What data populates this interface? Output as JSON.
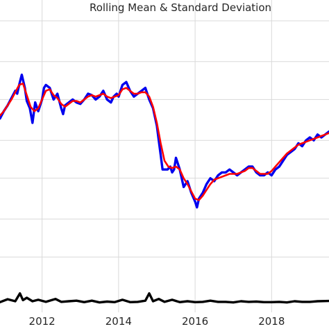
{
  "chart_data": {
    "type": "line",
    "title": "Rolling Mean & Standard Deviation",
    "xlabel": "",
    "ylabel": "",
    "xlim": [
      2010.9,
      2019.5
    ],
    "ylim": [
      0,
      100
    ],
    "x_ticks": [
      2012,
      2014,
      2016,
      2018
    ],
    "x_tick_labels": [
      "2012",
      "2014",
      "2016",
      "2018"
    ],
    "y_gridlines": [
      19,
      32,
      46,
      59,
      73,
      86,
      100
    ],
    "grid": true,
    "legend": "none",
    "series": [
      {
        "color": "#0000ee",
        "x": [
          2010.9,
          2011.0,
          2011.1,
          2011.2,
          2011.3,
          2011.35,
          2011.4,
          2011.47,
          2011.55,
          2011.6,
          2011.68,
          2011.75,
          2011.82,
          2011.9,
          2012.0,
          2012.05,
          2012.1,
          2012.2,
          2012.3,
          2012.4,
          2012.5,
          2012.55,
          2012.6,
          2012.7,
          2012.8,
          2012.9,
          2013.0,
          2013.1,
          2013.2,
          2013.3,
          2013.4,
          2013.5,
          2013.6,
          2013.7,
          2013.8,
          2013.87,
          2013.95,
          2014.0,
          2014.1,
          2014.2,
          2014.3,
          2014.4,
          2014.5,
          2014.6,
          2014.7,
          2014.8,
          2014.9,
          2015.0,
          2015.05,
          2015.1,
          2015.15,
          2015.2,
          2015.28,
          2015.35,
          2015.4,
          2015.45,
          2015.5,
          2015.6,
          2015.7,
          2015.8,
          2015.9,
          2016.0,
          2016.05,
          2016.1,
          2016.2,
          2016.3,
          2016.4,
          2016.5,
          2016.6,
          2016.7,
          2016.8,
          2016.9,
          2017.0,
          2017.1,
          2017.2,
          2017.3,
          2017.4,
          2017.5,
          2017.6,
          2017.7,
          2017.8,
          2017.9,
          2018.0,
          2018.1,
          2018.2,
          2018.3,
          2018.4,
          2018.5,
          2018.6,
          2018.7,
          2018.8,
          2018.9,
          2019.0,
          2019.1,
          2019.2,
          2019.3,
          2019.4,
          2019.5
        ],
        "y": [
          66.5,
          69,
          71,
          73.5,
          76,
          75,
          78,
          81.5,
          77,
          72.5,
          70,
          65,
          72,
          69,
          73,
          77,
          78,
          77,
          73,
          75,
          70,
          68,
          71,
          72,
          73,
          72,
          71.5,
          73,
          75,
          74.5,
          73,
          74,
          76,
          73,
          72,
          74,
          75,
          74,
          78,
          79,
          76,
          74,
          75,
          76,
          77,
          73,
          70,
          64,
          59,
          54,
          49,
          49,
          49,
          50,
          48,
          49,
          53,
          49,
          43,
          45,
          41,
          38,
          36,
          39,
          41,
          44,
          46,
          45,
          47,
          48,
          48,
          49,
          48,
          47,
          48,
          49,
          50,
          50,
          48,
          47,
          47,
          48,
          47,
          49,
          50,
          52,
          54,
          55,
          56,
          58,
          57,
          59,
          60,
          59,
          61,
          60,
          61,
          62
        ]
      },
      {
        "color": "#ff0000",
        "x": [
          2010.9,
          2011.0,
          2011.1,
          2011.2,
          2011.3,
          2011.4,
          2011.5,
          2011.6,
          2011.7,
          2011.8,
          2011.9,
          2012.0,
          2012.1,
          2012.2,
          2012.3,
          2012.4,
          2012.5,
          2012.6,
          2012.7,
          2012.8,
          2012.9,
          2013.0,
          2013.1,
          2013.2,
          2013.3,
          2013.4,
          2013.5,
          2013.6,
          2013.7,
          2013.8,
          2013.9,
          2014.0,
          2014.1,
          2014.2,
          2014.3,
          2014.4,
          2014.5,
          2014.6,
          2014.7,
          2014.8,
          2014.9,
          2015.0,
          2015.1,
          2015.2,
          2015.3,
          2015.4,
          2015.5,
          2015.6,
          2015.7,
          2015.8,
          2015.9,
          2016.0,
          2016.1,
          2016.2,
          2016.3,
          2016.4,
          2016.5,
          2016.6,
          2016.7,
          2016.8,
          2016.9,
          2017.0,
          2017.1,
          2017.2,
          2017.3,
          2017.4,
          2017.5,
          2017.6,
          2017.7,
          2017.8,
          2017.9,
          2018.0,
          2018.1,
          2018.2,
          2018.3,
          2018.4,
          2018.5,
          2018.6,
          2018.7,
          2018.8,
          2018.9,
          2019.0,
          2019.1,
          2019.2,
          2019.3,
          2019.4,
          2019.5
        ],
        "y": [
          67.5,
          69,
          71,
          73,
          75.5,
          78,
          78.5,
          74.5,
          70.5,
          69,
          70,
          73,
          76,
          76.5,
          74.5,
          73.5,
          71.5,
          70.5,
          71.5,
          72.5,
          72.5,
          72,
          73,
          74,
          74.5,
          74,
          74.5,
          75,
          74,
          73.5,
          74,
          74.5,
          76.5,
          77,
          76,
          75,
          75,
          75.5,
          75.5,
          74,
          70.5,
          65,
          58,
          52,
          50,
          49.5,
          50,
          49,
          46,
          44,
          41.5,
          39,
          38.5,
          40,
          42,
          44,
          45.5,
          46,
          46.5,
          47,
          47.5,
          47.5,
          47.5,
          48,
          48.5,
          49.5,
          49.5,
          48.5,
          47.5,
          47.5,
          47.5,
          48.5,
          50,
          51.5,
          53,
          54.5,
          55.5,
          56.5,
          57.5,
          58,
          58.5,
          59,
          59.5,
          60,
          60.5,
          61,
          61.5
        ]
      },
      {
        "color": "#000000",
        "x": [
          2010.9,
          2011.1,
          2011.3,
          2011.42,
          2011.5,
          2011.6,
          2011.75,
          2011.9,
          2012.1,
          2012.25,
          2012.35,
          2012.5,
          2012.7,
          2012.9,
          2013.1,
          2013.3,
          2013.5,
          2013.7,
          2013.9,
          2014.1,
          2014.3,
          2014.5,
          2014.7,
          2014.8,
          2014.9,
          2015.05,
          2015.2,
          2015.4,
          2015.6,
          2015.8,
          2016.0,
          2016.2,
          2016.4,
          2016.6,
          2016.8,
          2017.0,
          2017.2,
          2017.4,
          2017.6,
          2017.8,
          2018.0,
          2018.2,
          2018.4,
          2018.6,
          2018.8,
          2019.0,
          2019.2,
          2019.5
        ],
        "y": [
          3.5,
          4.5,
          3.8,
          6.5,
          4.2,
          5,
          3.8,
          4.3,
          3.6,
          4.2,
          4.6,
          3.6,
          3.8,
          4,
          3.5,
          4,
          3.4,
          3.7,
          3.5,
          4.3,
          3.5,
          3.6,
          4,
          6.5,
          3.8,
          4.6,
          3.6,
          4.3,
          3.5,
          3.8,
          3.5,
          3.6,
          4,
          3.6,
          3.6,
          3.4,
          3.8,
          3.6,
          3.7,
          3.5,
          3.5,
          3.6,
          3.4,
          3.8,
          3.6,
          3.6,
          3.8,
          3.9
        ]
      }
    ]
  }
}
